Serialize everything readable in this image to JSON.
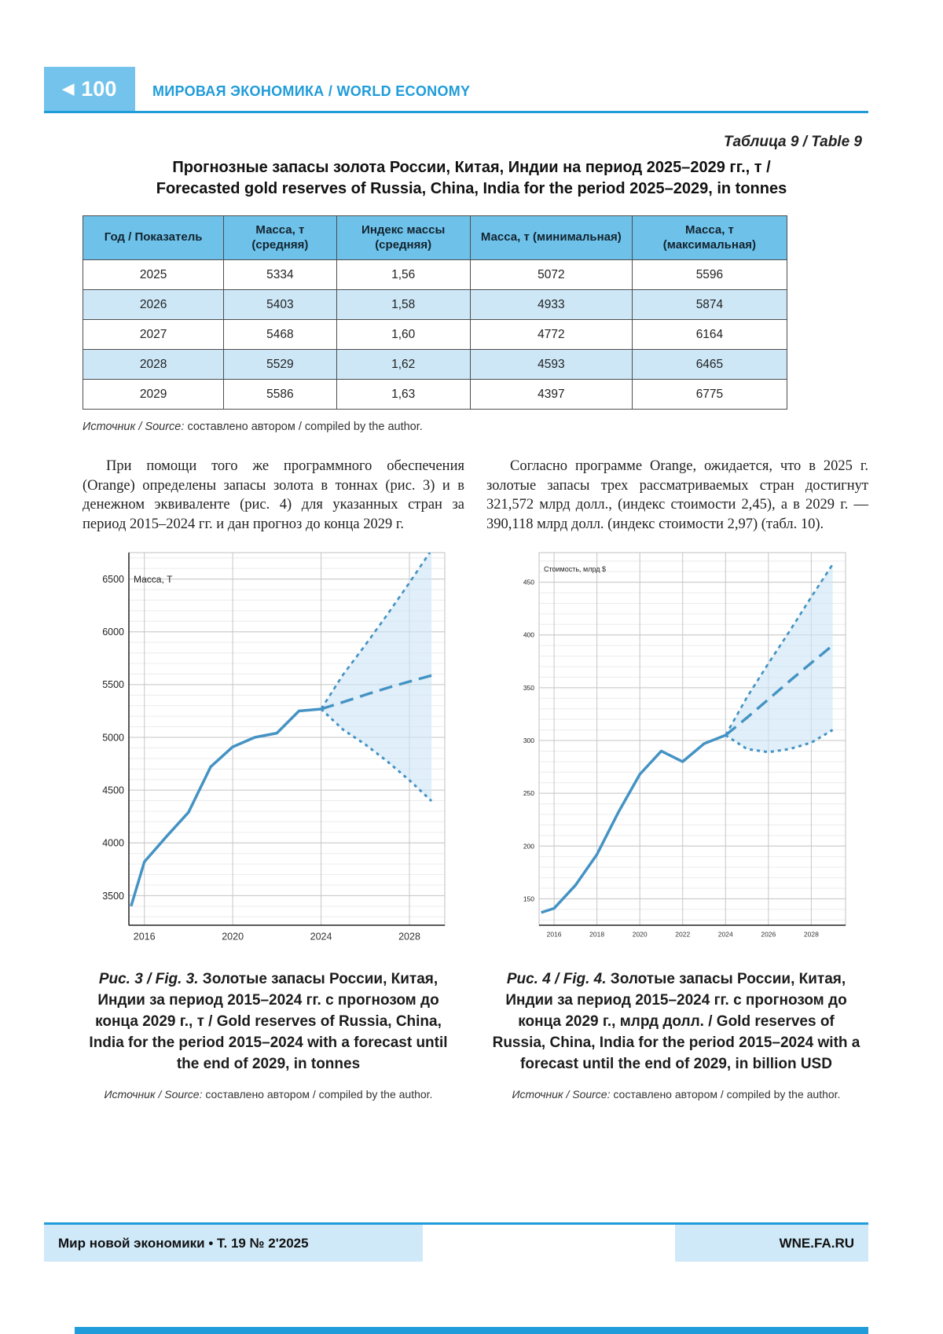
{
  "header": {
    "page_number": "100",
    "back_arrow": "◀",
    "section_title": "МИРОВАЯ ЭКОНОМИКА / WORLD ECONOMY"
  },
  "table9": {
    "label": "Таблица 9 / Table 9",
    "title_ru": "Прогнозные запасы золота России, Китая, Индии на период 2025–2029 гг., т /",
    "title_en": "Forecasted gold reserves of Russia, China, India for the period 2025–2029, in tonnes",
    "columns": [
      "Год / Показатель",
      "Масса, т (средняя)",
      "Индекс массы (средняя)",
      "Масса, т (минимальная)",
      "Масса, т (максимальная)"
    ],
    "rows": [
      [
        "2025",
        "5334",
        "1,56",
        "5072",
        "5596"
      ],
      [
        "2026",
        "5403",
        "1,58",
        "4933",
        "5874"
      ],
      [
        "2027",
        "5468",
        "1,60",
        "4772",
        "6164"
      ],
      [
        "2028",
        "5529",
        "1,62",
        "4593",
        "6465"
      ],
      [
        "2029",
        "5586",
        "1,63",
        "4397",
        "6775"
      ]
    ],
    "source_label": "Источник / Source:",
    "source_text": "составлено автором / compiled by the author."
  },
  "body": {
    "para_left": "При помощи того же программного обеспечения (Orange) определены запасы золота в тоннах (рис. 3) и в денежном эквиваленте (рис. 4) для указанных стран за период 2015–2024 гг. и дан прогноз до конца 2029 г.",
    "para_right": "Согласно программе Orange, ожидается, что в 2025 г. золотые запасы трех рассматриваемых стран достигнут 321,572 млрд долл., (индекс стоимости 2,45), а в 2029 г. — 390,118 млрд долл. (индекс стоимости 2,97) (табл. 10)."
  },
  "figures": [
    {
      "caption_prefix": "Рис. 3 / Fig. 3.",
      "caption_ru": "Золотые запасы России, Китая, Индии за период 2015–2024 гг. с прогнозом до конца 2029 г., т /",
      "caption_en": "Gold reserves of Russia, China, India for the period 2015–2024 with a forecast until the end of 2029, in tonnes",
      "source_label": "Источник / Source:",
      "source_text": "составлено автором / compiled by the author."
    },
    {
      "caption_prefix": "Рис. 4 / Fig. 4.",
      "caption_ru": "Золотые запасы России, Китая, Индии за период 2015–2024 гг. с прогнозом до конца 2029 г., млрд долл. /",
      "caption_en": "Gold reserves of Russia, China, India for the period 2015–2024 with a forecast until the end of 2029, in billion USD",
      "source_label": "Источник / Source:",
      "source_text": "составлено автором / compiled by the author."
    }
  ],
  "footer": {
    "journal": "Мир новой экономики • Т. 19 № 2'2025",
    "site": "WNE.FA.RU"
  },
  "accent_color": "#1f9cd9",
  "chart_data": [
    {
      "type": "line",
      "title": "Золотые запасы России, Китая, Индии, т (2015–2024, прогноз до 2029)",
      "ylabel": "Масса, Т",
      "xlabel": "",
      "line_color": "#4493c4",
      "fan_fill": "#cde5f5",
      "xlim": [
        2015.3,
        2029.6
      ],
      "ylim": [
        3220,
        6750
      ],
      "yticks": [
        3500,
        4000,
        4500,
        5000,
        5500,
        6000,
        6500
      ],
      "xticks": [
        2016,
        2020,
        2024,
        2028
      ],
      "minor_step": 100,
      "x_hist": [
        2015.4,
        2016,
        2017,
        2018,
        2019,
        2020,
        2021,
        2022,
        2023,
        2024
      ],
      "y_hist": [
        3400,
        3820,
        4060,
        4290,
        4720,
        4910,
        5000,
        5040,
        5250,
        5268
      ],
      "x_forecast": [
        2024,
        2025,
        2026,
        2027,
        2028,
        2029
      ],
      "forecast_mean": [
        5268,
        5334,
        5403,
        5468,
        5529,
        5586
      ],
      "forecast_max": [
        5268,
        5596,
        5874,
        6164,
        6465,
        6775
      ],
      "forecast_min": [
        5268,
        5072,
        4933,
        4772,
        4593,
        4397
      ]
    },
    {
      "type": "line",
      "title": "Золотые запасы России, Китая, Индии, млрд долл. (2015–2024, прогноз до 2029)",
      "ylabel": "Стоимость, млрд $",
      "xlabel": "",
      "line_color": "#4493c4",
      "fan_fill": "#cde5f5",
      "xlim": [
        2015.3,
        2029.6
      ],
      "ylim": [
        125,
        478
      ],
      "yticks": [
        150,
        200,
        250,
        300,
        350,
        400,
        450
      ],
      "xticks": [
        2016,
        2018,
        2020,
        2022,
        2024,
        2026,
        2028
      ],
      "minor_step": 10,
      "x_hist": [
        2015.4,
        2016,
        2017,
        2018,
        2019,
        2020,
        2021,
        2022,
        2023,
        2024
      ],
      "y_hist": [
        137,
        141,
        163,
        192,
        232,
        268,
        290,
        280,
        297,
        305
      ],
      "x_forecast": [
        2024,
        2025,
        2026,
        2027,
        2028,
        2029
      ],
      "forecast_mean": [
        305,
        321.572,
        339,
        356.5,
        373.5,
        390.118
      ],
      "forecast_max": [
        305,
        341,
        373,
        404,
        436,
        467
      ],
      "forecast_min": [
        305,
        292,
        289,
        292,
        298,
        310
      ]
    }
  ]
}
